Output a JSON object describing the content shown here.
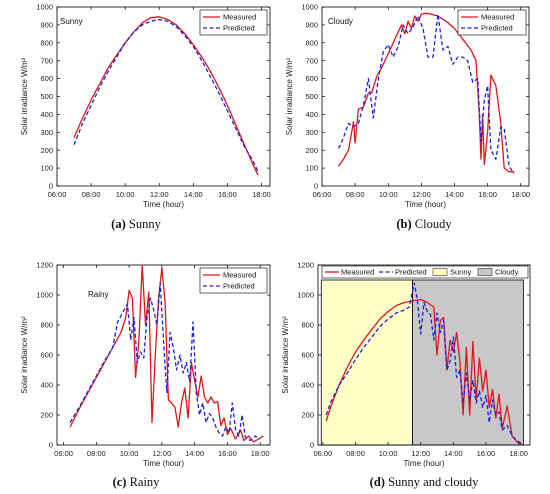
{
  "colors": {
    "measured": "#e0161c",
    "predicted": "#1f1fe0",
    "sunny_fill": "#ffffc8",
    "cloudy_fill": "#c8c8c8"
  },
  "legend": {
    "measured": "Measured",
    "predicted": "Predicted",
    "sunny": "Sunny",
    "cloudy": "Cloudy"
  },
  "chart_data": [
    {
      "type": "line",
      "id": "a",
      "caption_label": "(a)",
      "caption_text": "Sunny",
      "annotation": "Sunny",
      "xlabel": "Time (hour)",
      "ylabel": "Solar irradiance W/m²",
      "xlim": [
        6.0,
        18.5
      ],
      "ylim": [
        0,
        1000
      ],
      "xticks": [
        6,
        8,
        10,
        12,
        14,
        16,
        18
      ],
      "xticklabels": [
        "06:00",
        "08:00",
        "10:00",
        "12:00",
        "14:00",
        "16:00",
        "18:00"
      ],
      "yticks": [
        0,
        100,
        200,
        300,
        400,
        500,
        600,
        700,
        800,
        900,
        1000
      ],
      "yticklabels": [
        "0",
        "100",
        "200",
        "300",
        "400",
        "500",
        "600",
        "700",
        "800",
        "900",
        "1000"
      ],
      "series": [
        {
          "name": "Measured",
          "dashed": false,
          "x": [
            7.0,
            7.5,
            8.0,
            8.5,
            9.0,
            9.5,
            10.0,
            10.5,
            11.0,
            11.5,
            12.0,
            12.5,
            13.0,
            13.5,
            14.0,
            14.5,
            15.0,
            15.5,
            16.0,
            16.5,
            17.0,
            17.5,
            17.8
          ],
          "y": [
            270,
            380,
            480,
            570,
            660,
            730,
            800,
            860,
            910,
            940,
            945,
            930,
            900,
            850,
            790,
            720,
            640,
            550,
            450,
            340,
            230,
            120,
            60
          ]
        },
        {
          "name": "Predicted",
          "dashed": true,
          "x": [
            7.0,
            7.5,
            8.0,
            8.5,
            9.0,
            9.5,
            10.0,
            10.5,
            11.0,
            11.5,
            12.0,
            12.5,
            13.0,
            13.5,
            14.0,
            14.5,
            15.0,
            15.5,
            16.0,
            16.5,
            17.0,
            17.5,
            17.8
          ],
          "y": [
            230,
            350,
            450,
            550,
            640,
            720,
            800,
            860,
            900,
            920,
            930,
            920,
            890,
            840,
            780,
            700,
            610,
            520,
            420,
            320,
            220,
            140,
            80
          ]
        }
      ]
    },
    {
      "type": "line",
      "id": "b",
      "caption_label": "(b)",
      "caption_text": "Cloudy",
      "annotation": "Cloudy",
      "xlabel": "Time (hour)",
      "ylabel": "Solar irradiance W/m²",
      "xlim": [
        6.0,
        18.5
      ],
      "ylim": [
        0,
        1000
      ],
      "xticks": [
        6,
        8,
        10,
        12,
        14,
        16,
        18
      ],
      "xticklabels": [
        "06:00",
        "08:00",
        "10:00",
        "12:00",
        "14:00",
        "16:00",
        "18:00"
      ],
      "yticks": [
        0,
        100,
        200,
        300,
        400,
        500,
        600,
        700,
        800,
        900,
        1000
      ],
      "yticklabels": [
        "0",
        "100",
        "200",
        "300",
        "400",
        "500",
        "600",
        "700",
        "800",
        "900",
        "1000"
      ],
      "series": [
        {
          "name": "Measured",
          "dashed": false,
          "x": [
            7.0,
            7.3,
            7.6,
            7.9,
            8.0,
            8.2,
            8.5,
            8.8,
            9.0,
            9.3,
            9.6,
            9.9,
            10.2,
            10.5,
            10.8,
            11.0,
            11.2,
            11.4,
            11.6,
            11.8,
            12.0,
            12.3,
            12.6,
            13.0,
            13.5,
            14.0,
            14.5,
            15.0,
            15.3,
            15.5,
            15.6,
            15.7,
            15.8,
            16.0,
            16.2,
            16.5,
            16.8,
            17.0,
            17.3,
            17.6
          ],
          "y": [
            110,
            150,
            200,
            360,
            240,
            430,
            440,
            520,
            520,
            610,
            660,
            720,
            780,
            840,
            900,
            850,
            920,
            880,
            950,
            920,
            960,
            965,
            960,
            950,
            920,
            880,
            820,
            760,
            700,
            400,
            150,
            400,
            120,
            300,
            620,
            560,
            350,
            100,
            80,
            80
          ]
        },
        {
          "name": "Predicted",
          "dashed": true,
          "x": [
            7.0,
            7.3,
            7.6,
            7.9,
            8.2,
            8.5,
            8.8,
            9.1,
            9.4,
            9.7,
            10.0,
            10.3,
            10.6,
            10.9,
            11.2,
            11.5,
            11.8,
            12.1,
            12.4,
            12.7,
            13.0,
            13.3,
            13.6,
            13.9,
            14.2,
            14.5,
            14.8,
            15.1,
            15.4,
            15.6,
            15.8,
            16.0,
            16.2,
            16.5,
            16.8,
            17.0,
            17.3,
            17.6
          ],
          "y": [
            210,
            270,
            350,
            330,
            350,
            450,
            600,
            380,
            600,
            750,
            790,
            720,
            780,
            900,
            850,
            890,
            950,
            880,
            720,
            720,
            960,
            760,
            780,
            680,
            720,
            720,
            700,
            580,
            600,
            250,
            480,
            560,
            200,
            150,
            330,
            320,
            110,
            70
          ]
        }
      ]
    },
    {
      "type": "line",
      "id": "c",
      "caption_label": "(c)",
      "caption_text": "Rainy",
      "annotation": "Rainy",
      "xlabel": "Time (hour)",
      "ylabel": "Solar irradiance W/m²",
      "xlim": [
        5.6,
        18.6
      ],
      "ylim": [
        0,
        1200
      ],
      "xticks": [
        6,
        8,
        10,
        12,
        14,
        16,
        18
      ],
      "xticklabels": [
        "06:00",
        "08:00",
        "10:00",
        "12:00",
        "14:00",
        "16:00",
        "18:00"
      ],
      "yticks": [
        0,
        200,
        400,
        600,
        800,
        1000,
        1200
      ],
      "yticklabels": [
        "0",
        "200",
        "400",
        "600",
        "800",
        "1000",
        "1200"
      ],
      "series": [
        {
          "name": "Measured",
          "dashed": false,
          "x": [
            6.4,
            7.0,
            7.5,
            8.0,
            8.5,
            9.0,
            9.5,
            9.8,
            10.0,
            10.2,
            10.4,
            10.6,
            10.8,
            11.0,
            11.2,
            11.4,
            11.6,
            11.8,
            12.0,
            12.2,
            12.4,
            12.6,
            12.8,
            13.0,
            13.2,
            13.4,
            13.6,
            13.8,
            14.0,
            14.2,
            14.4,
            14.6,
            14.8,
            15.0,
            15.2,
            15.4,
            15.6,
            15.8,
            16.0,
            16.2,
            16.5,
            16.8,
            17.0,
            17.3,
            17.6,
            17.9,
            18.2
          ],
          "y": [
            120,
            250,
            350,
            450,
            550,
            650,
            750,
            850,
            1030,
            980,
            450,
            700,
            1200,
            800,
            1020,
            150,
            600,
            980,
            1180,
            950,
            300,
            280,
            250,
            120,
            280,
            380,
            180,
            550,
            430,
            320,
            460,
            320,
            280,
            320,
            280,
            290,
            130,
            180,
            70,
            110,
            40,
            100,
            30,
            60,
            20,
            40,
            60
          ]
        },
        {
          "name": "Predicted",
          "dashed": true,
          "x": [
            6.4,
            7.0,
            7.5,
            8.0,
            8.5,
            9.0,
            9.3,
            9.6,
            9.9,
            10.1,
            10.3,
            10.5,
            10.7,
            10.9,
            11.1,
            11.3,
            11.5,
            11.7,
            11.9,
            12.1,
            12.3,
            12.5,
            12.7,
            12.9,
            13.1,
            13.3,
            13.5,
            13.7,
            13.9,
            14.1,
            14.3,
            14.5,
            14.7,
            14.9,
            15.1,
            15.3,
            15.5,
            15.7,
            15.9,
            16.1,
            16.3,
            16.5,
            16.7,
            16.9,
            17.1,
            17.4,
            17.7,
            18.0
          ],
          "y": [
            150,
            260,
            360,
            460,
            560,
            650,
            820,
            880,
            940,
            700,
            850,
            550,
            620,
            580,
            860,
            980,
            900,
            800,
            1080,
            700,
            350,
            750,
            650,
            500,
            600,
            480,
            550,
            420,
            820,
            350,
            200,
            280,
            150,
            210,
            180,
            120,
            80,
            60,
            120,
            80,
            280,
            100,
            60,
            200,
            50,
            30,
            60,
            40
          ]
        }
      ]
    },
    {
      "type": "line",
      "id": "d",
      "caption_label": "(d)",
      "caption_text": "Sunny and cloudy",
      "annotation": "",
      "xlabel": "Time (hour)",
      "ylabel": "Solar irradiance W/m²",
      "xlim": [
        5.7,
        18.7
      ],
      "ylim": [
        0,
        1200
      ],
      "xticks": [
        6,
        8,
        10,
        12,
        14,
        16,
        18
      ],
      "xticklabels": [
        "06:00",
        "08:00",
        "10:00",
        "12:00",
        "14:00",
        "16:00",
        "18:00"
      ],
      "yticks": [
        0,
        200,
        400,
        600,
        800,
        1000,
        1200
      ],
      "yticklabels": [
        "0",
        "200",
        "400",
        "600",
        "800",
        "1000",
        "1200"
      ],
      "regions": [
        {
          "name": "Sunny",
          "x0": 5.9,
          "x1": 11.5,
          "ymax": 1100
        },
        {
          "name": "Cloudy",
          "x0": 11.5,
          "x1": 18.3,
          "ymax": 1100
        }
      ],
      "series": [
        {
          "name": "Measured",
          "dashed": false,
          "x": [
            6.2,
            6.5,
            7.0,
            7.5,
            8.0,
            8.5,
            9.0,
            9.5,
            10.0,
            10.5,
            11.0,
            11.5,
            12.0,
            12.4,
            12.8,
            13.0,
            13.2,
            13.4,
            13.6,
            13.8,
            14.0,
            14.2,
            14.4,
            14.6,
            14.8,
            15.0,
            15.2,
            15.4,
            15.6,
            15.8,
            16.0,
            16.2,
            16.4,
            16.6,
            16.8,
            17.0,
            17.3,
            17.6,
            17.9,
            18.2
          ],
          "y": [
            160,
            260,
            400,
            520,
            620,
            700,
            770,
            840,
            890,
            930,
            950,
            960,
            970,
            950,
            920,
            600,
            830,
            850,
            500,
            700,
            620,
            750,
            560,
            200,
            650,
            200,
            690,
            300,
            580,
            360,
            500,
            250,
            370,
            180,
            340,
            110,
            260,
            60,
            20,
            5
          ]
        },
        {
          "name": "Predicted",
          "dashed": true,
          "x": [
            6.2,
            6.5,
            7.0,
            7.5,
            8.0,
            8.5,
            9.0,
            9.5,
            10.0,
            10.5,
            11.0,
            11.3,
            11.6,
            11.8,
            12.0,
            12.2,
            12.4,
            12.6,
            12.8,
            13.0,
            13.2,
            13.4,
            13.6,
            13.8,
            14.0,
            14.2,
            14.4,
            14.6,
            14.8,
            15.0,
            15.2,
            15.4,
            15.6,
            15.8,
            16.0,
            16.2,
            16.4,
            16.6,
            16.8,
            17.0,
            17.3,
            17.6,
            17.9,
            18.2
          ],
          "y": [
            200,
            290,
            400,
            480,
            570,
            650,
            720,
            790,
            840,
            880,
            900,
            920,
            1080,
            960,
            740,
            950,
            890,
            870,
            700,
            880,
            750,
            830,
            500,
            560,
            720,
            450,
            500,
            280,
            480,
            300,
            430,
            280,
            360,
            250,
            330,
            150,
            300,
            200,
            220,
            100,
            130,
            60,
            30,
            10
          ]
        }
      ]
    }
  ]
}
